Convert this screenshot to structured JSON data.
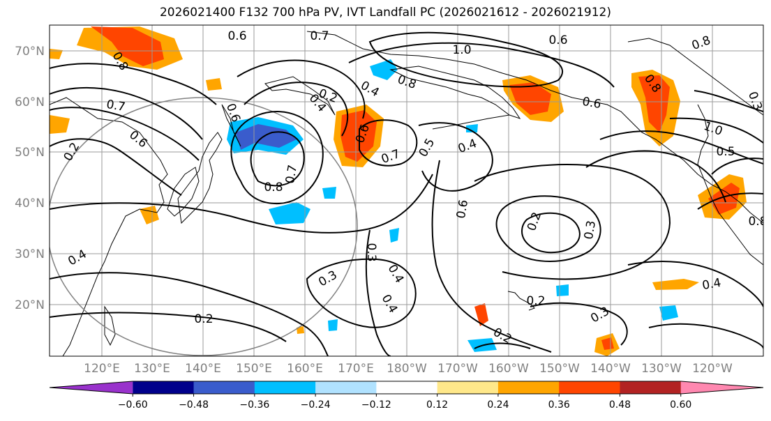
{
  "title": "2026021400 F132 700 hPa PV, IVT Landfall PC (2026021612 - 2026021912)",
  "map": {
    "lat_labels": [
      "70°N",
      "60°N",
      "50°N",
      "40°N",
      "30°N",
      "20°N"
    ],
    "lon_labels": [
      "120°E",
      "130°E",
      "140°E",
      "150°E",
      "160°E",
      "170°E",
      "180°W",
      "170°W",
      "160°W",
      "150°W",
      "140°W",
      "130°W",
      "120°W"
    ],
    "contour_labels": [
      "0.6",
      "0.7",
      "0.6",
      "0.8",
      "1.0",
      "0.8",
      "0.7",
      "0.6",
      "0.4",
      "0.8",
      "0.6",
      "0.2",
      "0.6",
      "0.7",
      "0.6",
      "0.4",
      "0.4",
      "0.7",
      "0.8",
      "0.5",
      "0.4",
      "1.0",
      "0.5",
      "0.3",
      "0.6",
      "0.2",
      "0.3",
      "0.2",
      "0.3",
      "0.3",
      "0.4",
      "0.4",
      "0.2",
      "0.2",
      "0.3",
      "0.2",
      "0.4",
      "0.8",
      "0.8"
    ]
  },
  "colorbar": {
    "ticks": [
      "−0.60",
      "−0.48",
      "−0.36",
      "−0.24",
      "−0.12",
      "0.12",
      "0.24",
      "0.36",
      "0.48",
      "0.60"
    ],
    "colors": [
      "#9932cc",
      "#00008b",
      "#3a5ccc",
      "#00bfff",
      "#b0e2ff",
      "#ffffff",
      "#ffe88a",
      "#ffa500",
      "#ff4500",
      "#b22222",
      "#ff88b0"
    ]
  }
}
